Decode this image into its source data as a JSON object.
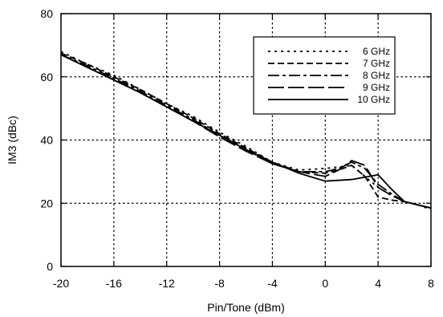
{
  "chart_data": {
    "type": "line",
    "title": "",
    "xlabel": "Pin/Tone (dBm)",
    "ylabel": "IM3 (dBc)",
    "xlim": [
      -20,
      8
    ],
    "ylim": [
      0,
      80
    ],
    "xticks": [
      -20,
      -16,
      -12,
      -8,
      -4,
      0,
      4,
      8
    ],
    "yticks": [
      0,
      20,
      40,
      60,
      80
    ],
    "xtick_labels": [
      "-20",
      "-16",
      "-12",
      "-8",
      "-4",
      "0",
      "4",
      "8"
    ],
    "ytick_labels": [
      "0",
      "20",
      "40",
      "60",
      "80"
    ],
    "grid": true,
    "legend_position": "top-right",
    "series": [
      {
        "name": "6 GHz",
        "dash": "dotted",
        "x": [
          -20,
          -18,
          -16,
          -14,
          -12,
          -10,
          -8,
          -6,
          -4,
          -2,
          0,
          1,
          2,
          3,
          4,
          5,
          6,
          7,
          8
        ],
        "y": [
          68,
          64,
          60.5,
          56,
          51.5,
          47.5,
          42.5,
          38,
          33,
          30.5,
          31,
          31.5,
          32,
          28.5,
          25,
          22.5,
          20.5,
          19.5,
          18
        ]
      },
      {
        "name": "7 GHz",
        "dash": "short-dash",
        "x": [
          -20,
          -18,
          -16,
          -14,
          -12,
          -10,
          -8,
          -6,
          -4,
          -2,
          0,
          1,
          2,
          3,
          4,
          5,
          6,
          7,
          8
        ],
        "y": [
          67.5,
          64,
          60,
          56,
          51.5,
          47,
          42,
          37.5,
          33,
          30,
          29.5,
          30.5,
          32,
          28.5,
          22,
          21,
          20.5,
          19.5,
          18.5
        ]
      },
      {
        "name": "8 GHz",
        "dash": "dash-dot",
        "x": [
          -20,
          -18,
          -16,
          -14,
          -12,
          -10,
          -8,
          -6,
          -4,
          -2,
          0,
          1,
          2,
          3,
          4,
          5,
          6,
          7,
          8
        ],
        "y": [
          67,
          63.5,
          59.5,
          55.5,
          51,
          46.5,
          41.5,
          37,
          32.5,
          30,
          30,
          31,
          33,
          31,
          26,
          23,
          20.5,
          19.5,
          18.5
        ]
      },
      {
        "name": "9 GHz",
        "dash": "long-dash",
        "x": [
          -20,
          -18,
          -16,
          -14,
          -12,
          -10,
          -8,
          -6,
          -4,
          -2,
          0,
          1,
          2,
          3,
          4,
          5,
          6,
          7,
          8
        ],
        "y": [
          67,
          63,
          59,
          55,
          50.5,
          46,
          41,
          36.5,
          32.5,
          30,
          28.5,
          30.5,
          33.5,
          32,
          25,
          22.5,
          20.5,
          19.5,
          18.5
        ]
      },
      {
        "name": "10 GHz",
        "dash": "solid",
        "x": [
          -20,
          -18,
          -16,
          -14,
          -12,
          -10,
          -8,
          -6,
          -4,
          -2,
          0,
          2,
          4,
          5,
          6,
          7,
          8
        ],
        "y": [
          67,
          63,
          59,
          55,
          50.5,
          46,
          41.5,
          37,
          33,
          29.5,
          27,
          27.5,
          29,
          24.5,
          20.5,
          19.5,
          18.5
        ]
      }
    ]
  }
}
